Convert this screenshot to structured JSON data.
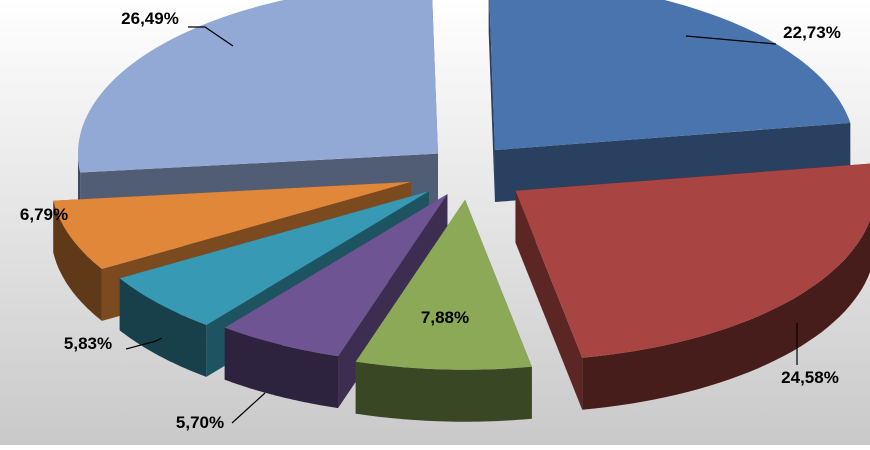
{
  "chart_data": {
    "type": "pie",
    "title": "",
    "categories": [
      "",
      "",
      "",
      "",
      "",
      "",
      ""
    ],
    "values": [
      22.73,
      24.58,
      7.88,
      5.7,
      5.83,
      6.79,
      26.49
    ],
    "data_labels": [
      "22,73%",
      "24,58%",
      "7,88%",
      "5,70%",
      "5,83%",
      "6,79%",
      "26,49%"
    ],
    "colors": [
      "#4A74AE",
      "#A84543",
      "#8BA957",
      "#6E5493",
      "#3799B3",
      "#E18739",
      "#93A9D5"
    ],
    "style": "exploded 3D pie",
    "legend": "none"
  },
  "background": {
    "top": "#FFFFFF",
    "bottom": "#C9C9C9"
  }
}
